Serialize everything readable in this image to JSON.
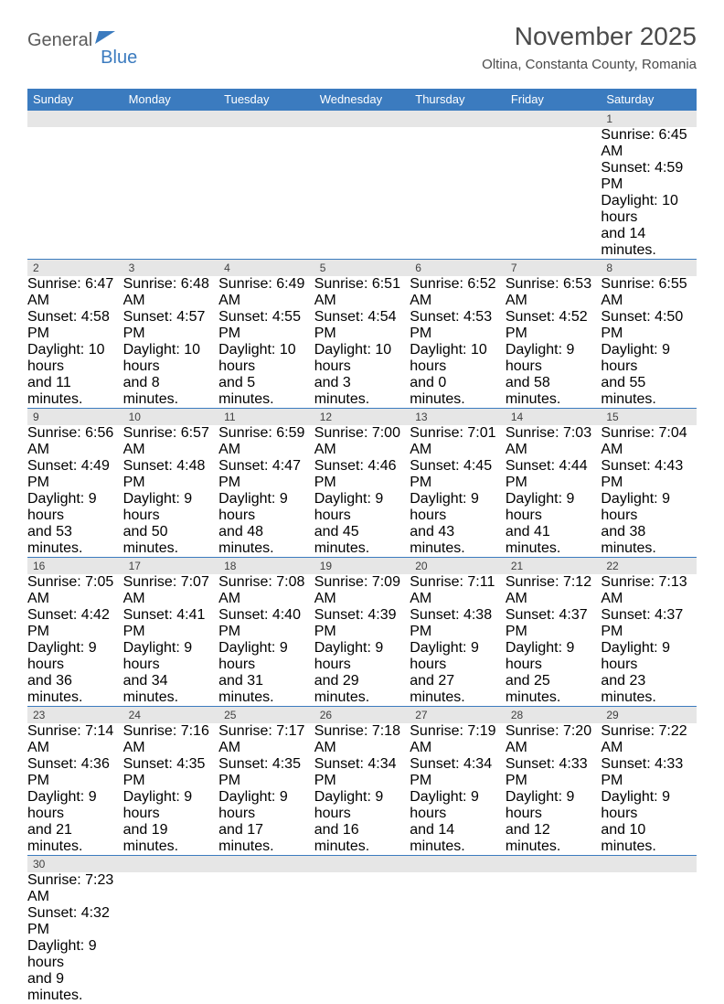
{
  "logo": {
    "text1": "General",
    "text2": "Blue"
  },
  "title": "November 2025",
  "location": "Oltina, Constanta County, Romania",
  "colors": {
    "header_bg": "#3b7bbf",
    "header_text": "#ffffff",
    "daynum_bg": "#e6e6e6",
    "text": "#404040",
    "rule": "#3b7bbf",
    "background": "#ffffff"
  },
  "typography": {
    "title_fontsize": 28,
    "location_fontsize": 15,
    "dayheader_fontsize": 13,
    "daynum_fontsize": 12,
    "cell_fontsize": 10.5
  },
  "day_headers": [
    "Sunday",
    "Monday",
    "Tuesday",
    "Wednesday",
    "Thursday",
    "Friday",
    "Saturday"
  ],
  "weeks": [
    {
      "nums": [
        "",
        "",
        "",
        "",
        "",
        "",
        "1"
      ],
      "cells": [
        [],
        [],
        [],
        [],
        [],
        [],
        [
          "Sunrise: 6:45 AM",
          "Sunset: 4:59 PM",
          "Daylight: 10 hours",
          "and 14 minutes."
        ]
      ]
    },
    {
      "nums": [
        "2",
        "3",
        "4",
        "5",
        "6",
        "7",
        "8"
      ],
      "cells": [
        [
          "Sunrise: 6:47 AM",
          "Sunset: 4:58 PM",
          "Daylight: 10 hours",
          "and 11 minutes."
        ],
        [
          "Sunrise: 6:48 AM",
          "Sunset: 4:57 PM",
          "Daylight: 10 hours",
          "and 8 minutes."
        ],
        [
          "Sunrise: 6:49 AM",
          "Sunset: 4:55 PM",
          "Daylight: 10 hours",
          "and 5 minutes."
        ],
        [
          "Sunrise: 6:51 AM",
          "Sunset: 4:54 PM",
          "Daylight: 10 hours",
          "and 3 minutes."
        ],
        [
          "Sunrise: 6:52 AM",
          "Sunset: 4:53 PM",
          "Daylight: 10 hours",
          "and 0 minutes."
        ],
        [
          "Sunrise: 6:53 AM",
          "Sunset: 4:52 PM",
          "Daylight: 9 hours",
          "and 58 minutes."
        ],
        [
          "Sunrise: 6:55 AM",
          "Sunset: 4:50 PM",
          "Daylight: 9 hours",
          "and 55 minutes."
        ]
      ]
    },
    {
      "nums": [
        "9",
        "10",
        "11",
        "12",
        "13",
        "14",
        "15"
      ],
      "cells": [
        [
          "Sunrise: 6:56 AM",
          "Sunset: 4:49 PM",
          "Daylight: 9 hours",
          "and 53 minutes."
        ],
        [
          "Sunrise: 6:57 AM",
          "Sunset: 4:48 PM",
          "Daylight: 9 hours",
          "and 50 minutes."
        ],
        [
          "Sunrise: 6:59 AM",
          "Sunset: 4:47 PM",
          "Daylight: 9 hours",
          "and 48 minutes."
        ],
        [
          "Sunrise: 7:00 AM",
          "Sunset: 4:46 PM",
          "Daylight: 9 hours",
          "and 45 minutes."
        ],
        [
          "Sunrise: 7:01 AM",
          "Sunset: 4:45 PM",
          "Daylight: 9 hours",
          "and 43 minutes."
        ],
        [
          "Sunrise: 7:03 AM",
          "Sunset: 4:44 PM",
          "Daylight: 9 hours",
          "and 41 minutes."
        ],
        [
          "Sunrise: 7:04 AM",
          "Sunset: 4:43 PM",
          "Daylight: 9 hours",
          "and 38 minutes."
        ]
      ]
    },
    {
      "nums": [
        "16",
        "17",
        "18",
        "19",
        "20",
        "21",
        "22"
      ],
      "cells": [
        [
          "Sunrise: 7:05 AM",
          "Sunset: 4:42 PM",
          "Daylight: 9 hours",
          "and 36 minutes."
        ],
        [
          "Sunrise: 7:07 AM",
          "Sunset: 4:41 PM",
          "Daylight: 9 hours",
          "and 34 minutes."
        ],
        [
          "Sunrise: 7:08 AM",
          "Sunset: 4:40 PM",
          "Daylight: 9 hours",
          "and 31 minutes."
        ],
        [
          "Sunrise: 7:09 AM",
          "Sunset: 4:39 PM",
          "Daylight: 9 hours",
          "and 29 minutes."
        ],
        [
          "Sunrise: 7:11 AM",
          "Sunset: 4:38 PM",
          "Daylight: 9 hours",
          "and 27 minutes."
        ],
        [
          "Sunrise: 7:12 AM",
          "Sunset: 4:37 PM",
          "Daylight: 9 hours",
          "and 25 minutes."
        ],
        [
          "Sunrise: 7:13 AM",
          "Sunset: 4:37 PM",
          "Daylight: 9 hours",
          "and 23 minutes."
        ]
      ]
    },
    {
      "nums": [
        "23",
        "24",
        "25",
        "26",
        "27",
        "28",
        "29"
      ],
      "cells": [
        [
          "Sunrise: 7:14 AM",
          "Sunset: 4:36 PM",
          "Daylight: 9 hours",
          "and 21 minutes."
        ],
        [
          "Sunrise: 7:16 AM",
          "Sunset: 4:35 PM",
          "Daylight: 9 hours",
          "and 19 minutes."
        ],
        [
          "Sunrise: 7:17 AM",
          "Sunset: 4:35 PM",
          "Daylight: 9 hours",
          "and 17 minutes."
        ],
        [
          "Sunrise: 7:18 AM",
          "Sunset: 4:34 PM",
          "Daylight: 9 hours",
          "and 16 minutes."
        ],
        [
          "Sunrise: 7:19 AM",
          "Sunset: 4:34 PM",
          "Daylight: 9 hours",
          "and 14 minutes."
        ],
        [
          "Sunrise: 7:20 AM",
          "Sunset: 4:33 PM",
          "Daylight: 9 hours",
          "and 12 minutes."
        ],
        [
          "Sunrise: 7:22 AM",
          "Sunset: 4:33 PM",
          "Daylight: 9 hours",
          "and 10 minutes."
        ]
      ]
    },
    {
      "nums": [
        "30",
        "",
        "",
        "",
        "",
        "",
        ""
      ],
      "cells": [
        [
          "Sunrise: 7:23 AM",
          "Sunset: 4:32 PM",
          "Daylight: 9 hours",
          "and 9 minutes."
        ],
        [],
        [],
        [],
        [],
        [],
        []
      ]
    }
  ]
}
